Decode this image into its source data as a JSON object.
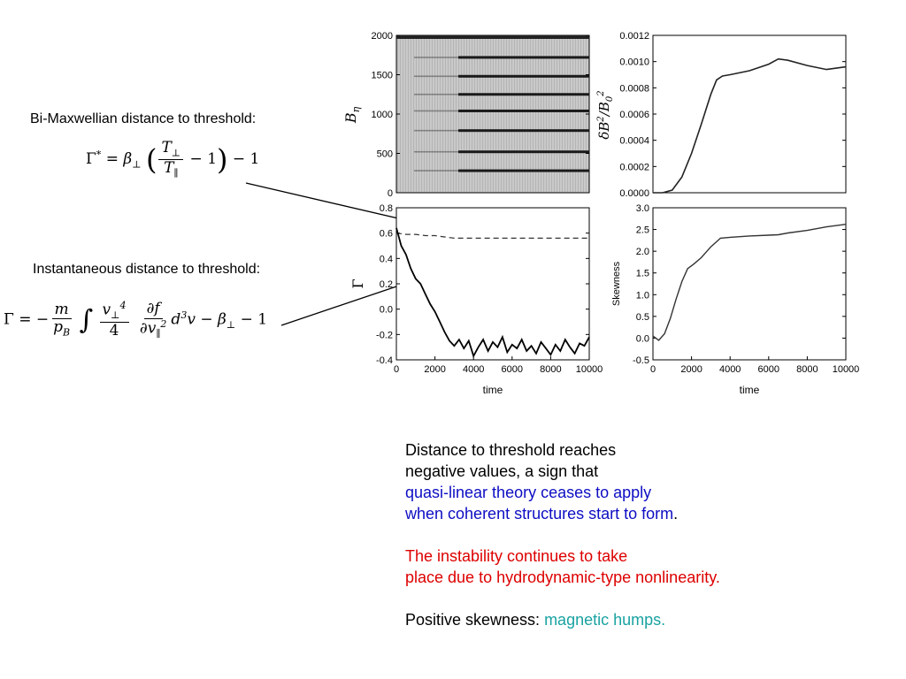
{
  "left_annotations": {
    "bimaxwellian_label": "Bi-Maxwellian distance to threshold:",
    "instantaneous_label": "Instantaneous distance to threshold:"
  },
  "text_block": {
    "p1_line1": "Distance to threshold reaches",
    "p1_line2": "negative values, a sign that",
    "p1_line3": "quasi-linear theory ceases to apply",
    "p1_line4": "when coherent structures start to form",
    "p1_end": ".",
    "p2_line1": "The instability continues to take",
    "p2_line2": "place due to hydrodynamic-type nonlinearity.",
    "p3_prefix": "Positive skewness: ",
    "p3_highlight": "magnetic humps.",
    "colors": {
      "blue": "#0d0dc4",
      "red": "#dd0000",
      "teal": "#1aa2a2"
    }
  },
  "chart_data": [
    {
      "type": "heatmap",
      "ylabel": "Bη",
      "ylim": [
        0,
        2000
      ],
      "yticks": [
        "2000",
        "1500",
        "1000",
        "500",
        "0"
      ],
      "bands_y": [
        1720,
        1480,
        1250,
        1040,
        790,
        520,
        280
      ]
    },
    {
      "type": "line",
      "ylabel": "δB²/B₀²",
      "xlim": [
        0,
        10000
      ],
      "ylim": [
        0,
        0.0012
      ],
      "yticks": [
        "0.0012",
        "0.0010",
        "0.0008",
        "0.0006",
        "0.0004",
        "0.0002",
        "0.0000"
      ],
      "series": [
        {
          "x": [
            0,
            500,
            1000,
            1500,
            2000,
            2500,
            3000,
            3300,
            3600,
            4000,
            5000,
            6000,
            6500,
            7000,
            8000,
            9000,
            10000
          ],
          "y": [
            0,
            0,
            2e-05,
            0.00012,
            0.0003,
            0.00052,
            0.00075,
            0.00086,
            0.00089,
            0.0009,
            0.00093,
            0.00098,
            0.00102,
            0.00101,
            0.00097,
            0.00094,
            0.00096
          ]
        }
      ]
    },
    {
      "type": "line",
      "ylabel": "Γ",
      "xlabel": "time",
      "xlim": [
        0,
        10000
      ],
      "ylim": [
        -0.4,
        0.8
      ],
      "yticks": [
        "0.8",
        "0.6",
        "0.4",
        "0.2",
        "0.0",
        "-0.2",
        "-0.4"
      ],
      "xticks": [
        "0",
        "2000",
        "4000",
        "6000",
        "8000",
        "10000"
      ],
      "series": [
        {
          "x": [
            0,
            250,
            500,
            750,
            1000,
            1250,
            1500,
            1750,
            2000,
            2250,
            2500,
            2750,
            3000,
            3250,
            3500,
            3750,
            4000,
            4250,
            4500,
            4750,
            5000,
            5250,
            5500,
            5750,
            6000,
            6250,
            6500,
            6750,
            7000,
            7250,
            7500,
            7750,
            8000,
            8250,
            8500,
            8750,
            9000,
            9250,
            9500,
            9750,
            10000
          ],
          "y": [
            0.64,
            0.5,
            0.43,
            0.32,
            0.24,
            0.2,
            0.12,
            0.04,
            -0.02,
            -0.1,
            -0.18,
            -0.25,
            -0.29,
            -0.24,
            -0.31,
            -0.25,
            -0.37,
            -0.3,
            -0.24,
            -0.33,
            -0.26,
            -0.3,
            -0.22,
            -0.34,
            -0.28,
            -0.31,
            -0.24,
            -0.33,
            -0.29,
            -0.35,
            -0.26,
            -0.31,
            -0.36,
            -0.28,
            -0.33,
            -0.24,
            -0.3,
            -0.35,
            -0.27,
            -0.29,
            -0.22
          ]
        },
        {
          "x": [
            0,
            500,
            1000,
            1500,
            2000,
            2500,
            3000,
            3500,
            4000,
            5000,
            6000,
            7000,
            8000,
            9000,
            10000
          ],
          "y": [
            0.6,
            0.59,
            0.59,
            0.58,
            0.58,
            0.57,
            0.56,
            0.56,
            0.56,
            0.56,
            0.56,
            0.56,
            0.56,
            0.56,
            0.56
          ]
        }
      ]
    },
    {
      "type": "line",
      "ylabel": "Skewness",
      "xlabel": "time",
      "xlim": [
        0,
        10000
      ],
      "ylim": [
        -0.5,
        3.0
      ],
      "yticks": [
        "3.0",
        "2.5",
        "2.0",
        "1.5",
        "1.0",
        "0.5",
        "0.0",
        "-0.5"
      ],
      "xticks": [
        "0",
        "2000",
        "4000",
        "6000",
        "8000",
        "10000"
      ],
      "series": [
        {
          "x": [
            0,
            300,
            600,
            900,
            1200,
            1500,
            1800,
            2100,
            2500,
            3000,
            3500,
            4000,
            5000,
            6000,
            6500,
            7000,
            8000,
            9000,
            10000
          ],
          "y": [
            0.05,
            -0.05,
            0.1,
            0.45,
            0.9,
            1.3,
            1.6,
            1.7,
            1.85,
            2.1,
            2.3,
            2.32,
            2.35,
            2.37,
            2.38,
            2.42,
            2.48,
            2.56,
            2.62
          ]
        }
      ]
    }
  ]
}
